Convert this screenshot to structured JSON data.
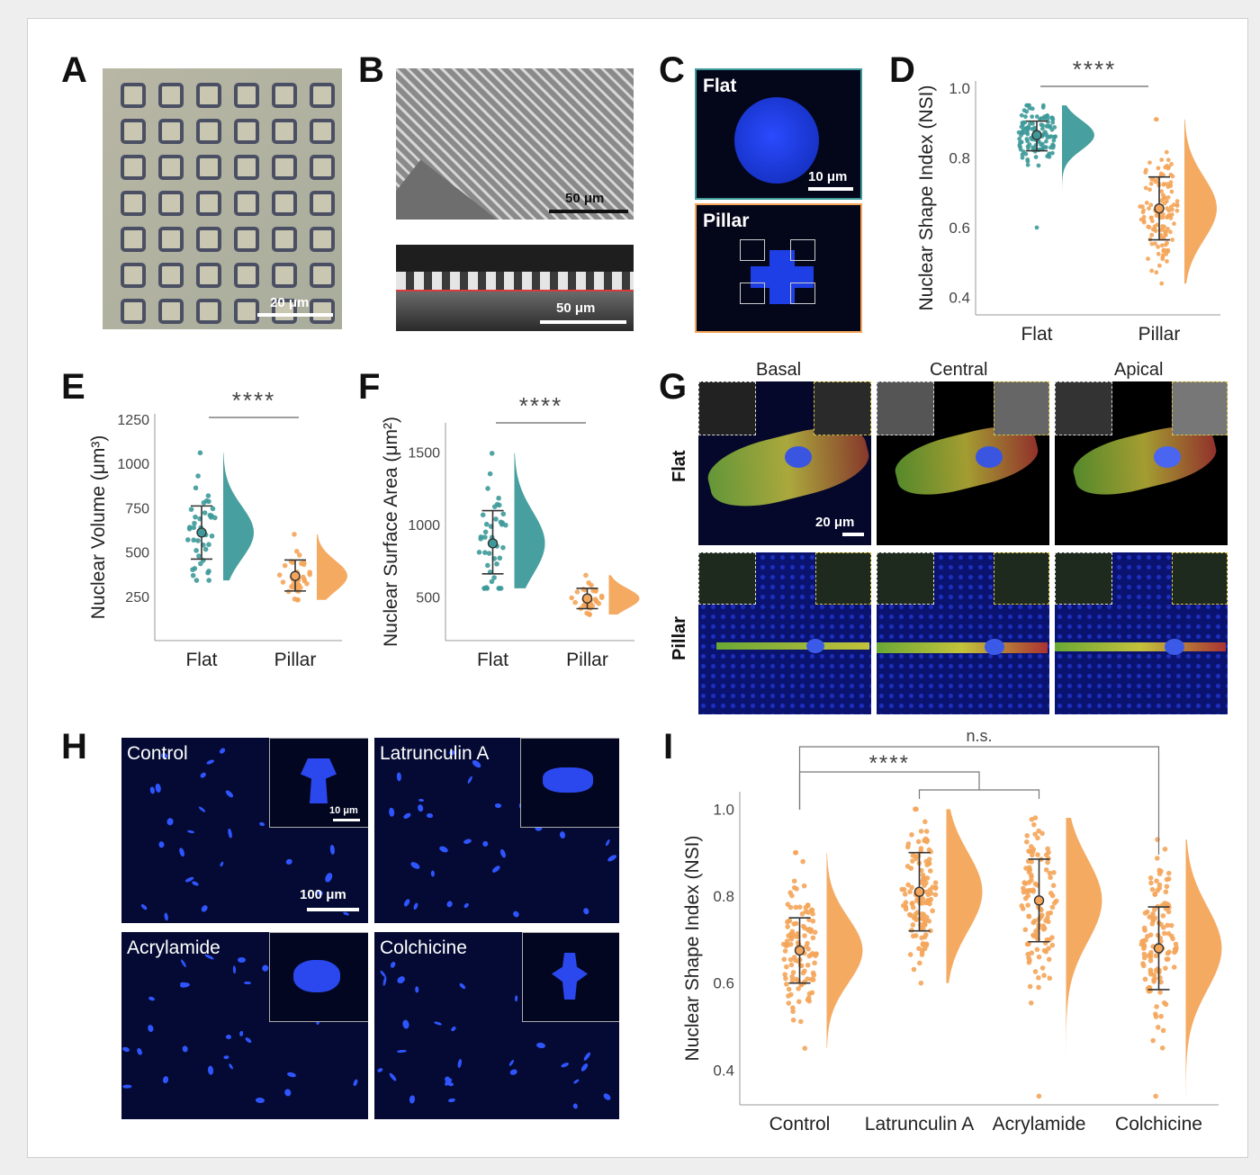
{
  "panel_labels": {
    "A": "A",
    "B": "B",
    "C": "C",
    "D": "D",
    "E": "E",
    "F": "F",
    "G": "G",
    "H": "H",
    "I": "I"
  },
  "panelA": {
    "scale": "20 μm"
  },
  "panelB": {
    "scale_top": "50 μm",
    "scale_bottom": "50 μm"
  },
  "panelC": {
    "top_label": "Flat",
    "bottom_label": "Pillar",
    "scale": "10 μm"
  },
  "panelG": {
    "columns": [
      "Basal",
      "Central",
      "Apical"
    ],
    "rows": [
      "Flat",
      "Pillar"
    ],
    "scale": "20 μm"
  },
  "panelH": {
    "labels": [
      "Control",
      "Latrunculin A",
      "Acrylamide",
      "Colchicine"
    ],
    "inset_scale": "10 μm",
    "scale": "100 μm"
  },
  "colors": {
    "teal": "#3e9a9a",
    "orange": "#f4a55a",
    "frame": "#cfcfcf"
  },
  "chart_data": [
    {
      "id": "D",
      "type": "scatter",
      "ylabel": "Nuclear Shape Index (NSI)",
      "categories": [
        "Flat",
        "Pillar"
      ],
      "yticks": [
        "0.4",
        "0.6",
        "0.8",
        "1.0"
      ],
      "ylim": [
        0.35,
        1.02
      ],
      "significance": "****",
      "series": [
        {
          "category": "Flat",
          "mean": 0.865,
          "sd_low": 0.82,
          "sd_high": 0.905,
          "min": 0.6,
          "max": 0.95,
          "color": "#3e9a9a"
        },
        {
          "category": "Pillar",
          "mean": 0.655,
          "sd_low": 0.565,
          "sd_high": 0.745,
          "min": 0.44,
          "max": 0.91,
          "color": "#f4a55a"
        }
      ]
    },
    {
      "id": "E",
      "type": "scatter",
      "ylabel": "Nuclear Volume (μm³)",
      "categories": [
        "Flat",
        "Pillar"
      ],
      "yticks": [
        "250",
        "500",
        "750",
        "1000",
        "1250"
      ],
      "ylim": [
        0,
        1280
      ],
      "significance": "****",
      "series": [
        {
          "category": "Flat",
          "mean": 610,
          "sd_low": 460,
          "sd_high": 760,
          "min": 340,
          "max": 1060,
          "color": "#3e9a9a"
        },
        {
          "category": "Pillar",
          "mean": 365,
          "sd_low": 280,
          "sd_high": 455,
          "min": 230,
          "max": 600,
          "color": "#f4a55a"
        }
      ]
    },
    {
      "id": "F",
      "type": "scatter",
      "ylabel": "Nuclear Surface Area (μm²)",
      "categories": [
        "Flat",
        "Pillar"
      ],
      "yticks": [
        "500",
        "1000",
        "1500"
      ],
      "ylim": [
        200,
        1700
      ],
      "significance": "****",
      "series": [
        {
          "category": "Flat",
          "mean": 870,
          "sd_low": 660,
          "sd_high": 1095,
          "min": 560,
          "max": 1490,
          "color": "#3e9a9a"
        },
        {
          "category": "Pillar",
          "mean": 490,
          "sd_low": 420,
          "sd_high": 560,
          "min": 380,
          "max": 650,
          "color": "#f4a55a"
        }
      ]
    },
    {
      "id": "I",
      "type": "scatter",
      "ylabel": "Nuclear Shape Index (NSI)",
      "categories": [
        "Control",
        "Latrunculin A",
        "Acrylamide",
        "Colchicine"
      ],
      "yticks": [
        "0.4",
        "0.6",
        "0.8",
        "1.0"
      ],
      "ylim": [
        0.32,
        1.04
      ],
      "annotations": [
        "****",
        "n.s."
      ],
      "series": [
        {
          "category": "Control",
          "mean": 0.675,
          "sd_low": 0.6,
          "sd_high": 0.75,
          "min": 0.45,
          "max": 0.9,
          "color": "#f4a55a"
        },
        {
          "category": "Latrunculin A",
          "mean": 0.81,
          "sd_low": 0.72,
          "sd_high": 0.9,
          "min": 0.6,
          "max": 1.0,
          "color": "#f4a55a"
        },
        {
          "category": "Acrylamide",
          "mean": 0.79,
          "sd_low": 0.695,
          "sd_high": 0.885,
          "min": 0.34,
          "max": 0.98,
          "color": "#f4a55a"
        },
        {
          "category": "Colchicine",
          "mean": 0.68,
          "sd_low": 0.585,
          "sd_high": 0.775,
          "min": 0.34,
          "max": 0.93,
          "color": "#f4a55a"
        }
      ]
    }
  ]
}
